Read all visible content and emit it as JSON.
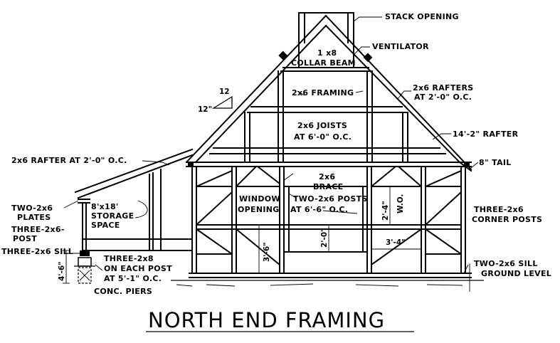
{
  "title": "NORTH END FRAMING",
  "labels": {
    "stack_opening": "STACK OPENING",
    "ventilator": "VENTILATOR",
    "collar_beam_1": "1 x8",
    "collar_beam_2": "COLLAR BEAM",
    "rafters_1": "2x6 RAFTERS",
    "rafters_2": "AT 2'-0\" O.C.",
    "framing": "2x6 FRAMING",
    "pitch_rise": "12\"",
    "pitch_run": "12",
    "joists_1": "2x6 JOISTS",
    "joists_2": "AT 6'-0\" O.C.",
    "rafter_len": "14'-2\" RAFTER",
    "shed_rafter": "2x6 RAFTER AT 2'-0\" O.C.",
    "tail": "8\" TAIL",
    "brace_1": "2x6",
    "brace_2": "BRACE",
    "plates_1": "TWO-2x6",
    "plates_2": "PLATES",
    "storage_1": "8'x18'",
    "storage_2": "STORAGE",
    "storage_3": "SPACE",
    "window_1": "WINDOW",
    "window_2": "OPENING",
    "posts_1": "TWO-2x6 POSTS",
    "posts_2": "AT 6'-6\" O.C.",
    "wo_height": "2'-4\"",
    "wo": "W.O.",
    "corner_1": "THREE-2x6",
    "corner_2": "CORNER POSTS",
    "post_1": "THREE-2x6-",
    "post_2": "POST",
    "sill_left": "THREE-2x6 SILL",
    "dim_3_6": "3'-6\"",
    "dim_2_0": "2'-0\"",
    "dim_3_4": "3'-4\"",
    "each_post_1": "THREE-2x8",
    "each_post_2": "ON EACH POST",
    "each_post_3": "AT 5'-1\" O.C.",
    "sill_right": "TWO-2x6 SILL",
    "ground": "GROUND LEVEL",
    "dim_4_6": "4'-6\"",
    "piers": "CONC. PIERS"
  }
}
